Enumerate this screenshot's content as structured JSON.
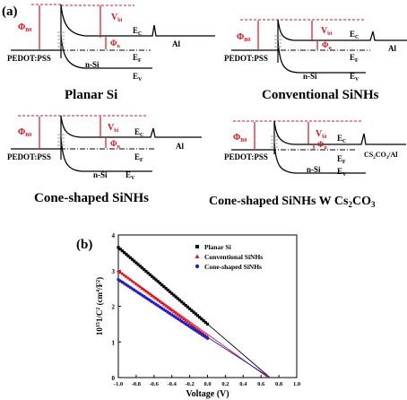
{
  "figure": {
    "panel_a_label": "(a)",
    "panel_b_label": "(b)"
  },
  "colors": {
    "red": "#e0101b",
    "black": "#000000",
    "blue": "#1f1fd6"
  },
  "diagrams": [
    {
      "caption": "Planar Si",
      "phi_b0": "Φ",
      "phi_b0_sub": "B0",
      "v_bi": "V",
      "v_bi_sub": "bi",
      "phi_n": "Φ",
      "phi_n_sub": "n",
      "ec": "E",
      "ec_sub": "C",
      "ef": "E",
      "ef_sub": "F",
      "ev": "E",
      "ev_sub": "V",
      "pedot": "PEDOT:PSS",
      "nsi": "n-Si",
      "metal": "Al"
    },
    {
      "caption": "Conventional SiNHs",
      "phi_b0": "Φ",
      "phi_b0_sub": "B0",
      "v_bi": "V",
      "v_bi_sub": "bi",
      "phi_n": "Φ",
      "phi_n_sub": "n",
      "ec": "E",
      "ec_sub": "C",
      "ef": "E",
      "ef_sub": "F",
      "ev": "E",
      "ev_sub": "V",
      "pedot": "PEDOT:PSS",
      "nsi": "n-Si",
      "metal": "Al"
    },
    {
      "caption": "Cone-shaped SiNHs",
      "phi_b0": "Φ",
      "phi_b0_sub": "B0",
      "v_bi": "V",
      "v_bi_sub": "bi",
      "phi_n": "Φ",
      "phi_n_sub": "n",
      "ec": "E",
      "ec_sub": "C",
      "ef": "E",
      "ef_sub": "F",
      "ev": "E",
      "ev_sub": "V",
      "pedot": "PEDOT:PSS",
      "nsi": "n-Si",
      "metal": "Al"
    },
    {
      "caption": "Cone-shaped SiNHs W Cs",
      "caption_sub": "2",
      "caption_rest": "CO",
      "caption_sub2": "3",
      "phi_b0": "Φ",
      "phi_b0_sub": "B0",
      "v_bi": "V",
      "v_bi_sub": "bi",
      "phi_n": "Φ",
      "phi_n_sub": "n",
      "ec": "E",
      "ec_sub": "C",
      "ef": "E",
      "ef_sub": "F",
      "ev": "E",
      "ev_sub": "V",
      "pedot": "PEDOT:PSS",
      "nsi": "n-Si",
      "metal": "CS",
      "metal_sub": "2",
      "metal_mid": "CO",
      "metal_sub2": "3",
      "metal_rest": "/Al"
    }
  ],
  "chart_data": {
    "type": "scatter",
    "xlabel": "Voltage (V)",
    "ylabel_prefix": "10",
    "ylabel_sup": "15",
    "ylabel_main": "1/C",
    "ylabel_sup2": "2",
    "ylabel_unit": " (cm",
    "ylabel_sup3": "4",
    "ylabel_unit2": "/F",
    "ylabel_sup4": "2",
    "ylabel_end": ")",
    "xlim": [
      -1.0,
      1.0
    ],
    "ylim": [
      0,
      4
    ],
    "xticks": [
      -1.0,
      -0.8,
      -0.6,
      -0.4,
      -0.2,
      0.0,
      0.2,
      0.4,
      0.6,
      0.8,
      1.0
    ],
    "xtick_labels": [
      "-1.0",
      "-0.8",
      "-0.6",
      "-0.4",
      "-0.2",
      "0.0",
      "0.2",
      "0.4",
      "0.6",
      "0.8",
      "1.0"
    ],
    "yticks": [
      0,
      1,
      2,
      3,
      4
    ],
    "ytick_labels": [
      "0",
      "1",
      "2",
      "3",
      "4"
    ],
    "legend_position": "top-right",
    "series": [
      {
        "name": "Planar Si",
        "marker": "square",
        "color": "#000000",
        "x_start": -1.0,
        "x_end": 0.0,
        "y_start": 3.65,
        "y_end": 1.5,
        "fit_intercept_x": 0.7
      },
      {
        "name": "Conventional SiNHs",
        "marker": "triangle",
        "color": "#e0101b",
        "x_start": -1.0,
        "x_end": 0.0,
        "y_start": 3.0,
        "y_end": 1.15,
        "fit_intercept_x": 0.68
      },
      {
        "name": "Cone-shaped SiNHs",
        "marker": "circle",
        "color": "#1f1fd6",
        "x_start": -1.0,
        "x_end": 0.0,
        "y_start": 2.75,
        "y_end": 1.1,
        "fit_intercept_x": 0.7
      }
    ]
  }
}
